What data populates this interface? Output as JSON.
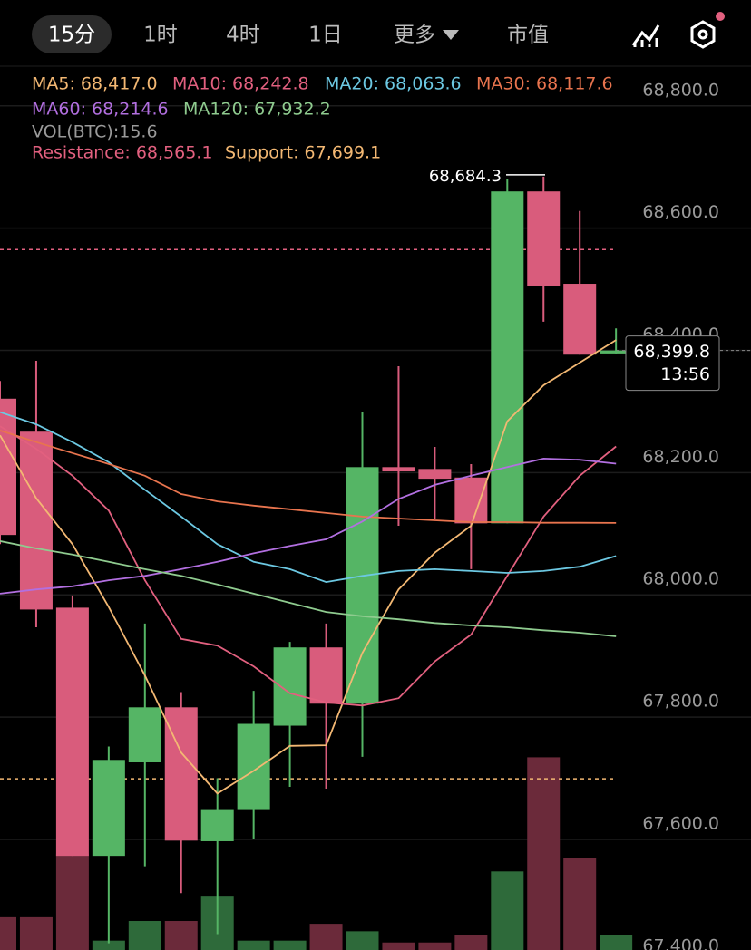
{
  "tabs": [
    "15分",
    "1时",
    "4时",
    "1日",
    "更多",
    "市值"
  ],
  "chart_data": {
    "type": "candlestick",
    "open": [
      68321,
      68267,
      67979,
      67573,
      67726,
      67816,
      67597,
      67648,
      67786,
      67914,
      67822,
      68209,
      68206,
      68192,
      68117,
      68660,
      68509,
      68395
    ],
    "high": [
      68350,
      68383,
      67999,
      67752,
      67953,
      67841,
      67700,
      67843,
      67923,
      67953,
      68300,
      68374,
      68242,
      68214,
      68681,
      68684.3,
      68628,
      68436
    ],
    "low": [
      68083,
      67947,
      67573,
      67430,
      67556,
      67512,
      67445,
      67601,
      67686,
      67683,
      67735,
      68113,
      68125,
      68042,
      68117,
      68447,
      68393,
      68395
    ],
    "close": [
      68098,
      67976,
      67573,
      67730,
      67816,
      67598,
      67648,
      67789,
      67914,
      67822,
      68209,
      68202,
      68190,
      68117,
      68660,
      68506,
      68393,
      68399.8
    ],
    "volume": [
      35,
      35,
      103,
      10,
      31,
      31,
      58,
      10,
      10,
      28,
      20,
      8,
      8,
      16,
      84,
      206,
      98,
      15.6
    ],
    "vlim": [
      0,
      250
    ],
    "up_color": "#55b565",
    "down_color": "#d95c7c",
    "vol_up_color": "#2e6a3a",
    "vol_down_color": "#6b2a3a",
    "series": [
      {
        "name": "MA5",
        "label": "MA5: 68,417.0",
        "color": "#f3b873",
        "values": [
          68261,
          68158,
          68083,
          67980,
          67868,
          67742,
          67675,
          67712,
          67753,
          67754,
          67905,
          68009,
          68069,
          68113,
          68284,
          68343,
          68380,
          68417.0
        ]
      },
      {
        "name": "MA10",
        "label": "MA10: 68,242.8",
        "color": "#e2607f",
        "values": [
          68276,
          68239,
          68195,
          68138,
          68024,
          67928,
          67917,
          67883,
          67839,
          67824,
          67819,
          67831,
          67891,
          67935,
          68031,
          68128,
          68195,
          68242.8
        ]
      },
      {
        "name": "MA20",
        "label": "MA20: 68,063.6",
        "color": "#6cc8e2",
        "values": [
          68299,
          68279,
          68250,
          68217,
          68172,
          68128,
          68083,
          68054,
          68042,
          68021,
          68031,
          68039,
          68042,
          68039,
          68036,
          68039,
          68046,
          68063.6
        ]
      },
      {
        "name": "MA30",
        "label": "MA30: 68,117.6",
        "color": "#e8744e",
        "values": [
          68269,
          68250,
          68232,
          68214,
          68195,
          68165,
          68153,
          68146,
          68140,
          68134,
          68128,
          68125,
          68122,
          68119,
          68119,
          68118,
          68118,
          68117.6
        ]
      },
      {
        "name": "MA60",
        "label": "MA60: 68,214.6",
        "color": "#b26fe0",
        "values": [
          68002,
          68009,
          68014,
          68024,
          68031,
          68042,
          68054,
          68068,
          68080,
          68091,
          68120,
          68157,
          68180,
          68195,
          68209,
          68223,
          68221,
          68214.6
        ]
      },
      {
        "name": "MA120",
        "label": "MA120: 67,932.2",
        "color": "#8fcb8f",
        "values": [
          68088,
          68076,
          68066,
          68054,
          68042,
          68031,
          68017,
          68002,
          67987,
          67972,
          67965,
          67960,
          67954,
          67950,
          67947,
          67942,
          67938,
          67932.2
        ]
      }
    ],
    "volume_label": "VOL(BTC):15.6",
    "resistance": {
      "value": 68565.1,
      "label": "Resistance: 68,565.1",
      "color": "#e2607f"
    },
    "support": {
      "value": 67699.1,
      "label": "Support: 67,699.1",
      "color": "#f3b873"
    },
    "high_marker": {
      "value": 68684.3,
      "label": "68,684.3"
    },
    "current_price": {
      "value": 68399.8,
      "label": "68,399.8"
    },
    "countdown": "13:56",
    "ylim": [
      67419,
      68862
    ],
    "yticks": [
      {
        "value": 67400,
        "label": "67,400.0"
      },
      {
        "value": 67600,
        "label": "67,600.0"
      },
      {
        "value": 67800,
        "label": "67,800.0"
      },
      {
        "value": 68000,
        "label": "68,000.0"
      },
      {
        "value": 68200,
        "label": "68,200.0"
      },
      {
        "value": 68400,
        "label": "68,400.0"
      },
      {
        "value": 68600,
        "label": "68,600.0"
      },
      {
        "value": 68800,
        "label": "68,800.0"
      }
    ],
    "grid": true
  }
}
